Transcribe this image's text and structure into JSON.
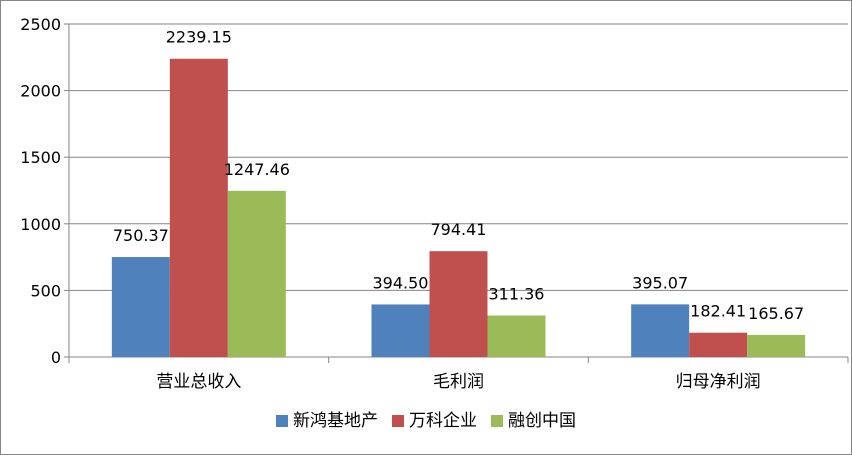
{
  "chart_data": {
    "type": "bar",
    "categories": [
      "营业总收入",
      "毛利润",
      "归母净利润"
    ],
    "series": [
      {
        "name": "新鸿基地产",
        "color": "#4f81bd",
        "values": [
          750.37,
          394.5,
          395.07
        ],
        "labels": [
          "750.37",
          "394.50",
          "395.07"
        ]
      },
      {
        "name": "万科企业",
        "color": "#c0504d",
        "values": [
          2239.15,
          794.41,
          182.41
        ],
        "labels": [
          "2239.15",
          "794.41",
          "182.41"
        ]
      },
      {
        "name": "融创中国",
        "color": "#9bbb59",
        "values": [
          1247.46,
          311.36,
          165.67
        ],
        "labels": [
          "1247.46",
          "311.36",
          "165.67"
        ]
      }
    ],
    "yticks": [
      "0",
      "500",
      "1000",
      "1500",
      "2000",
      "2500"
    ],
    "ylim": [
      0,
      2500
    ],
    "grid": true,
    "legend_position": "bottom",
    "title": "",
    "xlabel": "",
    "ylabel": ""
  }
}
